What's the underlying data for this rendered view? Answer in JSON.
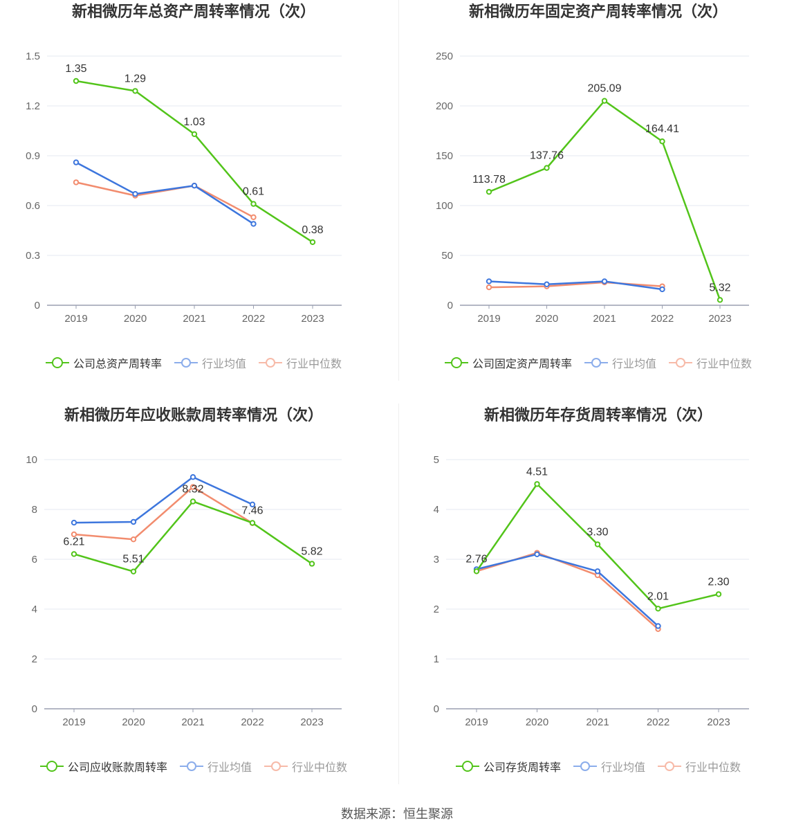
{
  "source": "数据来源：恒生聚源",
  "colors": {
    "company": "#52c41a",
    "avg": "#3d76dd",
    "median": "#f28c6e",
    "grid": "#e6e9f0",
    "axis": "#9a9fb0",
    "text": "#666666"
  },
  "chart_data": [
    {
      "type": "line",
      "title": "新相微历年总资产周转率情况（次）",
      "x": [
        "2019",
        "2020",
        "2021",
        "2022",
        "2023"
      ],
      "y_ticks": [
        "0",
        "0.3",
        "0.6",
        "0.9",
        "1.2",
        "1.5"
      ],
      "ylim": [
        0,
        1.5
      ],
      "grid": true,
      "legend_position": "bottom",
      "series": [
        {
          "name": "公司总资产周转率",
          "role": "company",
          "values": [
            1.35,
            1.29,
            1.03,
            0.61,
            0.38
          ],
          "labels": [
            "1.35",
            "1.29",
            "1.03",
            "0.61",
            "0.38"
          ]
        },
        {
          "name": "行业均值",
          "role": "avg",
          "values": [
            0.86,
            0.67,
            0.72,
            0.49,
            null
          ]
        },
        {
          "name": "行业中位数",
          "role": "median",
          "values": [
            0.74,
            0.66,
            0.72,
            0.53,
            null
          ]
        }
      ]
    },
    {
      "type": "line",
      "title": "新相微历年固定资产周转率情况（次）",
      "x": [
        "2019",
        "2020",
        "2021",
        "2022",
        "2023"
      ],
      "y_ticks": [
        "0",
        "50",
        "100",
        "150",
        "200",
        "250"
      ],
      "ylim": [
        0,
        250
      ],
      "grid": true,
      "legend_position": "bottom",
      "series": [
        {
          "name": "公司固定资产周转率",
          "role": "company",
          "values": [
            113.78,
            137.76,
            205.09,
            164.41,
            5.32
          ],
          "labels": [
            "113.78",
            "137.76",
            "205.09",
            "164.41",
            "5.32"
          ]
        },
        {
          "name": "行业均值",
          "role": "avg",
          "values": [
            24,
            21,
            24,
            16,
            null
          ]
        },
        {
          "name": "行业中位数",
          "role": "median",
          "values": [
            18,
            19,
            23,
            19,
            null
          ]
        }
      ]
    },
    {
      "type": "line",
      "title": "新相微历年应收账款周转率情况（次）",
      "x": [
        "2019",
        "2020",
        "2021",
        "2022",
        "2023"
      ],
      "y_ticks": [
        "0",
        "2",
        "4",
        "6",
        "8",
        "10"
      ],
      "ylim": [
        0,
        10
      ],
      "grid": true,
      "legend_position": "bottom",
      "series": [
        {
          "name": "公司应收账款周转率",
          "role": "company",
          "values": [
            6.21,
            5.51,
            8.32,
            7.46,
            5.82
          ],
          "labels": [
            "6.21",
            "5.51",
            "8.32",
            "7.46",
            "5.82"
          ]
        },
        {
          "name": "行业均值",
          "role": "avg",
          "values": [
            7.47,
            7.5,
            9.3,
            8.2,
            null
          ]
        },
        {
          "name": "行业中位数",
          "role": "median",
          "values": [
            7.0,
            6.8,
            8.9,
            7.45,
            null
          ]
        }
      ]
    },
    {
      "type": "line",
      "title": "新相微历年存货周转率情况（次）",
      "x": [
        "2019",
        "2020",
        "2021",
        "2022",
        "2023"
      ],
      "y_ticks": [
        "0",
        "1",
        "2",
        "3",
        "4",
        "5"
      ],
      "ylim": [
        0,
        5
      ],
      "grid": true,
      "legend_position": "bottom",
      "series": [
        {
          "name": "公司存货周转率",
          "role": "company",
          "values": [
            2.76,
            4.51,
            3.3,
            2.01,
            2.3
          ],
          "labels": [
            "2.76",
            "4.51",
            "3.30",
            "2.01",
            "2.30"
          ]
        },
        {
          "name": "行业均值",
          "role": "avg",
          "values": [
            2.8,
            3.1,
            2.76,
            1.66,
            null
          ]
        },
        {
          "name": "行业中位数",
          "role": "median",
          "values": [
            2.76,
            3.13,
            2.68,
            1.6,
            null
          ]
        }
      ]
    }
  ]
}
